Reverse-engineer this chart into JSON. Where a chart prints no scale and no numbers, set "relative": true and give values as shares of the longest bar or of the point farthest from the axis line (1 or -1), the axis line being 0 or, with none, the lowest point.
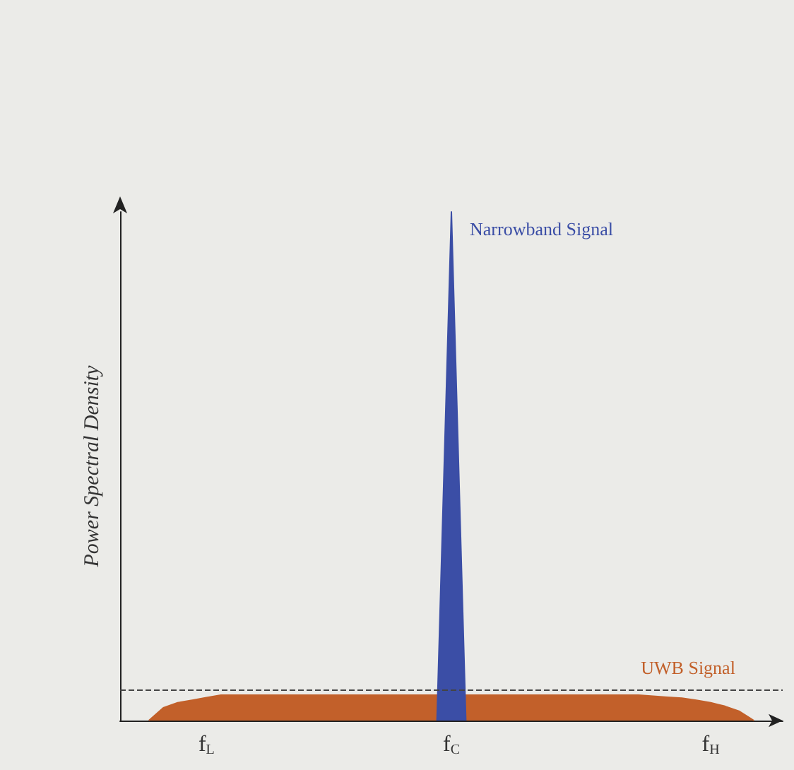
{
  "chart_data": {
    "type": "area",
    "relative": true,
    "ylabel": "Power Spectral Density",
    "categories": [
      null,
      null,
      null,
      null,
      null,
      null,
      "f$_{L}$",
      null,
      null,
      null,
      null,
      null,
      null,
      null,
      null,
      null,
      null,
      null,
      null,
      null,
      null,
      null,
      null,
      "f$_{C}$",
      null,
      null,
      null,
      null,
      null,
      null,
      null,
      null,
      null,
      null,
      null,
      null,
      null,
      null,
      null,
      null,
      null,
      "f$_{H}$",
      null,
      null,
      null,
      null,
      null
    ],
    "series": [
      {
        "name": "UWB Signal",
        "color": "#c2602a",
        "values": [
          null,
          null,
          0,
          0.025,
          0.035,
          0.04,
          0.045,
          0.05,
          0.05,
          0.05,
          0.05,
          0.05,
          0.05,
          0.05,
          0.05,
          0.05,
          0.05,
          0.05,
          0.05,
          0.05,
          0.05,
          0.05,
          0.05,
          0.05,
          0.05,
          0.05,
          0.05,
          0.05,
          0.05,
          0.05,
          0.05,
          0.05,
          0.05,
          0.05,
          0.05,
          0.05,
          0.05,
          0.048,
          0.046,
          0.044,
          0.04,
          0.035,
          0.028,
          0.018,
          0,
          null,
          null
        ]
      },
      {
        "name": "Narrowband Signal",
        "color": "#3b4ea6",
        "values": [
          null,
          null,
          null,
          null,
          null,
          null,
          null,
          null,
          null,
          null,
          null,
          null,
          null,
          null,
          null,
          null,
          null,
          null,
          null,
          null,
          null,
          null,
          0,
          1,
          0,
          null,
          null,
          null,
          null,
          null,
          null,
          null,
          null,
          null,
          null,
          null,
          null,
          null,
          null,
          null,
          null,
          null,
          null,
          null,
          null,
          null,
          null
        ]
      }
    ],
    "ref_lines": [
      {
        "axis": "y",
        "value": 0.058,
        "color": "#444444",
        "line_style": "dashed"
      }
    ],
    "legend": false,
    "grid": false,
    "marker": "none",
    "line_style": "solid"
  }
}
